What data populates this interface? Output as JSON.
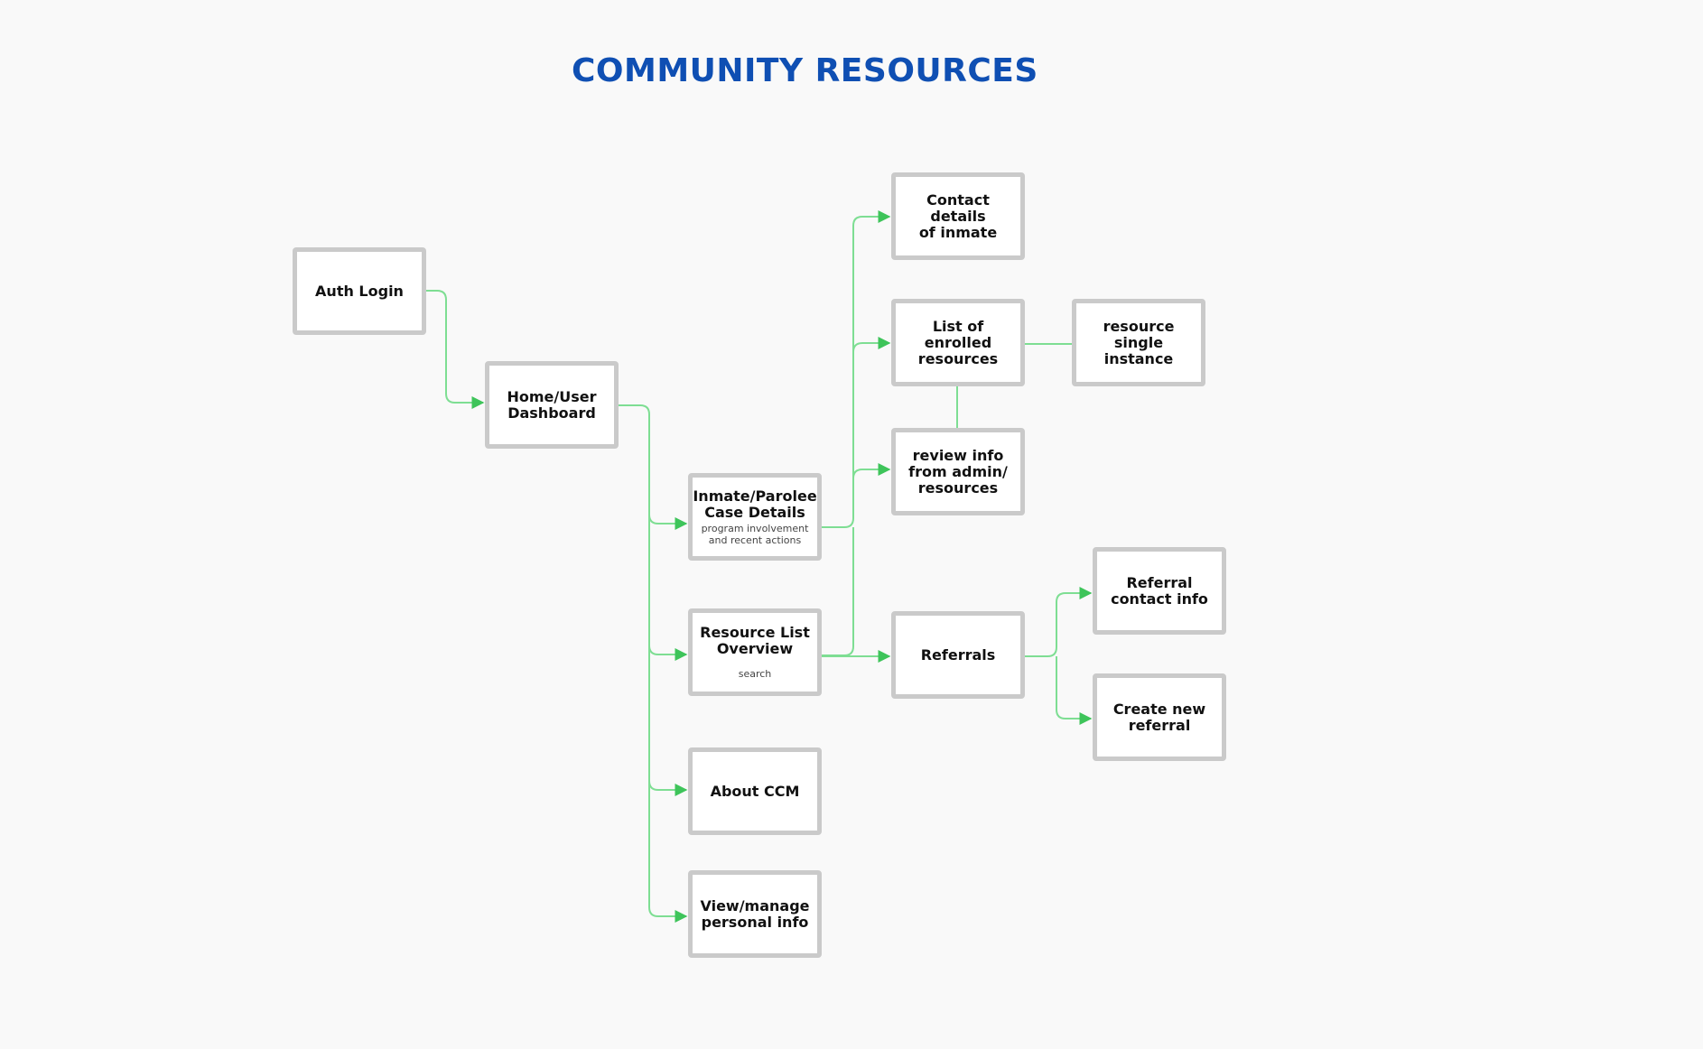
{
  "title": "COMMUNITY RESOURCES",
  "colors": {
    "title": "#0f4fb3",
    "connector": "#7ede93",
    "arrowhead": "#3ec45a",
    "node_border": "#cacaca"
  },
  "nodes": {
    "auth_login": {
      "label": "Auth Login"
    },
    "home_dashboard": {
      "label": "Home/User\nDashboard"
    },
    "case_details": {
      "label": "Inmate/Parolee\nCase Details",
      "sub": "program involvement\nand recent actions"
    },
    "resource_list": {
      "label": "Resource List\nOverview",
      "sub": "search"
    },
    "about_ccm": {
      "label": "About CCM"
    },
    "personal_info": {
      "label": "View/manage\npersonal info"
    },
    "contact_details": {
      "label": "Contact details\nof inmate"
    },
    "enrolled_resources": {
      "label": "List of enrolled\nresources"
    },
    "review_info": {
      "label": "review info\nfrom admin/\nresources"
    },
    "resource_instance": {
      "label": "resource single\ninstance"
    },
    "referrals": {
      "label": "Referrals"
    },
    "referral_contact": {
      "label": "Referral\ncontact info"
    },
    "create_referral": {
      "label": "Create new\nreferral"
    }
  }
}
